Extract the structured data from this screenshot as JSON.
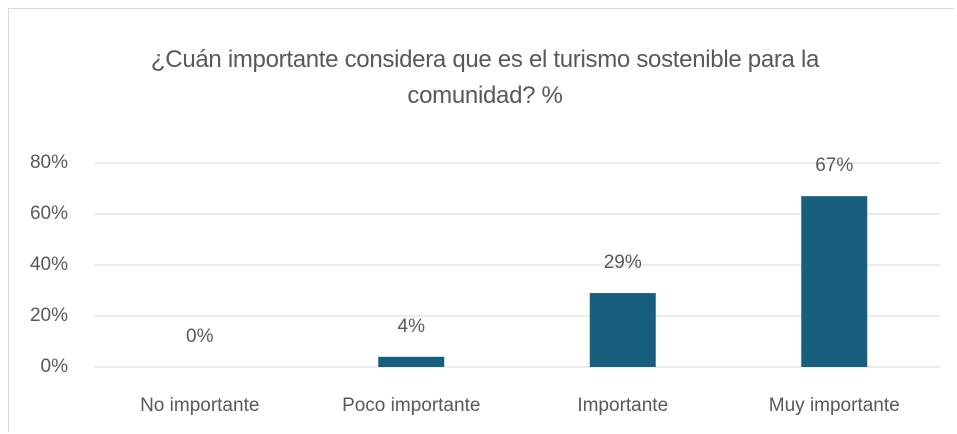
{
  "chart_data": {
    "type": "bar",
    "title": "¿Cuán importante considera que es el turismo sostenible para la comunidad? %",
    "categories": [
      "No importante",
      "Poco importante",
      "Importante",
      "Muy importante"
    ],
    "values": [
      0,
      4,
      29,
      67
    ],
    "value_labels": [
      "0%",
      "4%",
      "29%",
      "67%"
    ],
    "color": "#175e7f",
    "ylim": [
      0,
      80
    ],
    "yticks": [
      {
        "value": 0,
        "label": "0%"
      },
      {
        "value": 20,
        "label": "20%"
      },
      {
        "value": 40,
        "label": "40%"
      },
      {
        "value": 60,
        "label": "60%"
      },
      {
        "value": 80,
        "label": "80%"
      }
    ],
    "grid": true
  }
}
